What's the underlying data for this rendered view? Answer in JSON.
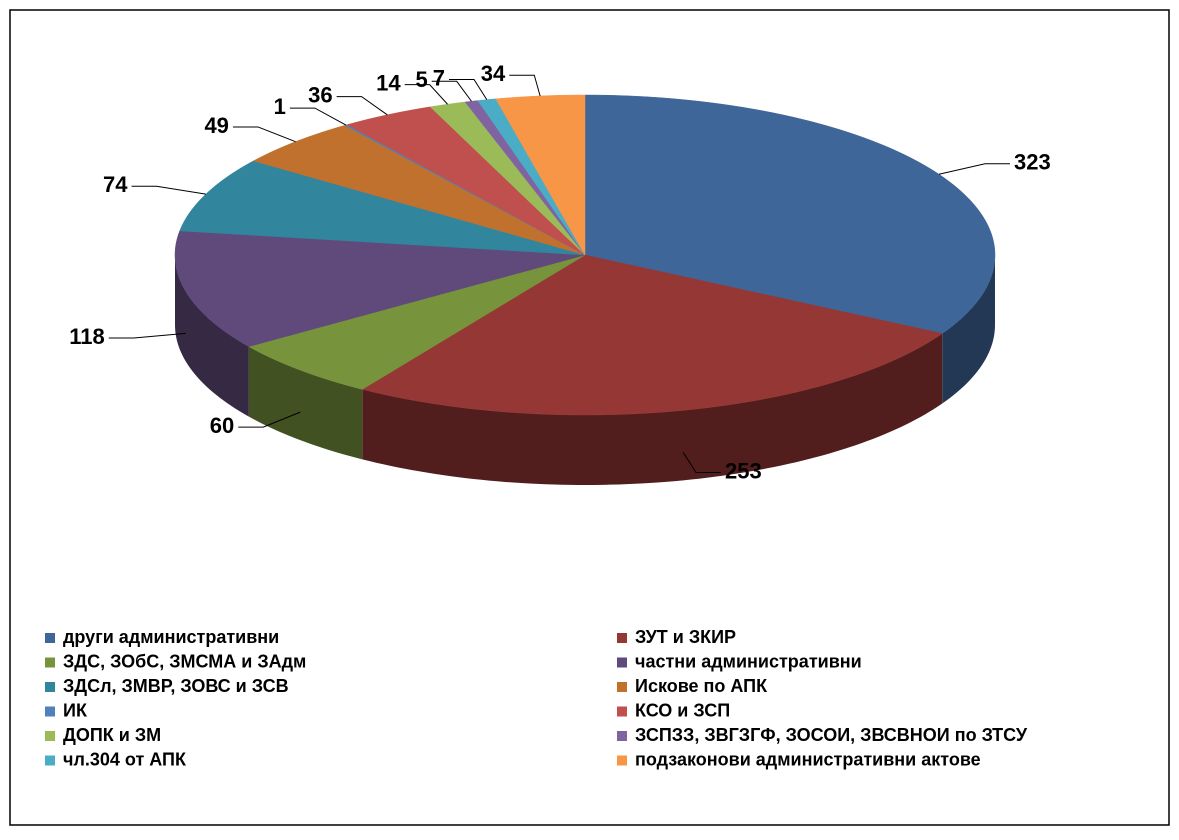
{
  "chart_data": {
    "type": "pie",
    "categories": [
      "други административни",
      "ЗУТ и ЗКИР",
      "ЗДС, ЗОбС, ЗМСМА и ЗАдм",
      "частни административни",
      "ЗДСл, ЗМВР, ЗОВС и ЗСВ",
      "Искове по АПК",
      "ИК",
      "КСО и ЗСП",
      "ДОПК и ЗМ",
      "ЗСПЗЗ, ЗВГЗГФ, ЗОСОИ, ЗВСВНОИ по ЗТСУ",
      "чл.304 от АПК",
      "подзаконови административни актове"
    ],
    "values": [
      323,
      253,
      60,
      118,
      74,
      49,
      1,
      36,
      14,
      5,
      7,
      34
    ],
    "colors": [
      "#3f6699",
      "#953735",
      "#77933c",
      "#604a7b",
      "#31859c",
      "#c0712e",
      "#4f81bd",
      "#c0504d",
      "#9bbb59",
      "#8064a2",
      "#4bacc6",
      "#f79646"
    ],
    "legend": "bottom"
  }
}
